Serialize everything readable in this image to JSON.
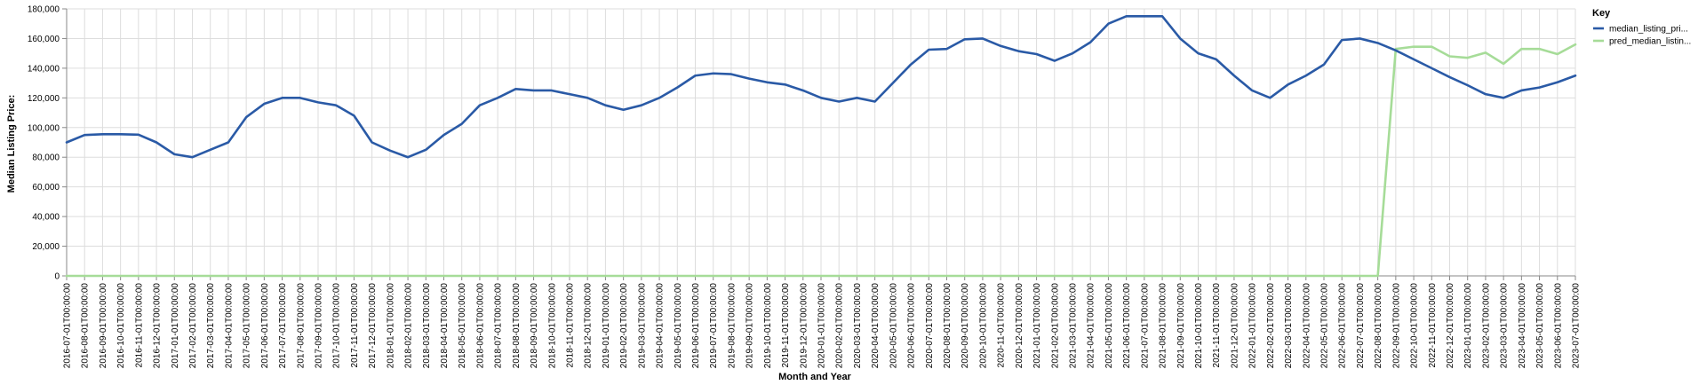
{
  "chart_data": {
    "type": "line",
    "xlabel": "Month and Year",
    "ylabel": "Median Listing Price:",
    "ylim": [
      0,
      180000
    ],
    "yticks": [
      "0",
      "20,000",
      "40,000",
      "60,000",
      "80,000",
      "100,000",
      "120,000",
      "140,000",
      "160,000",
      "180,000"
    ],
    "grid": true,
    "legend": {
      "title": "Key",
      "placement": "right"
    },
    "x": [
      "2016-07-01T00:00:00",
      "2016-08-01T00:00:00",
      "2016-09-01T00:00:00",
      "2016-10-01T00:00:00",
      "2016-11-01T00:00:00",
      "2016-12-01T00:00:00",
      "2017-01-01T00:00:00",
      "2017-02-01T00:00:00",
      "2017-03-01T00:00:00",
      "2017-04-01T00:00:00",
      "2017-05-01T00:00:00",
      "2017-06-01T00:00:00",
      "2017-07-01T00:00:00",
      "2017-08-01T00:00:00",
      "2017-09-01T00:00:00",
      "2017-10-01T00:00:00",
      "2017-11-01T00:00:00",
      "2017-12-01T00:00:00",
      "2018-01-01T00:00:00",
      "2018-02-01T00:00:00",
      "2018-03-01T00:00:00",
      "2018-04-01T00:00:00",
      "2018-05-01T00:00:00",
      "2018-06-01T00:00:00",
      "2018-07-01T00:00:00",
      "2018-08-01T00:00:00",
      "2018-09-01T00:00:00",
      "2018-10-01T00:00:00",
      "2018-11-01T00:00:00",
      "2018-12-01T00:00:00",
      "2019-01-01T00:00:00",
      "2019-02-01T00:00:00",
      "2019-03-01T00:00:00",
      "2019-04-01T00:00:00",
      "2019-05-01T00:00:00",
      "2019-06-01T00:00:00",
      "2019-07-01T00:00:00",
      "2019-08-01T00:00:00",
      "2019-09-01T00:00:00",
      "2019-10-01T00:00:00",
      "2019-11-01T00:00:00",
      "2019-12-01T00:00:00",
      "2020-01-01T00:00:00",
      "2020-02-01T00:00:00",
      "2020-03-01T00:00:00",
      "2020-04-01T00:00:00",
      "2020-05-01T00:00:00",
      "2020-06-01T00:00:00",
      "2020-07-01T00:00:00",
      "2020-08-01T00:00:00",
      "2020-09-01T00:00:00",
      "2020-10-01T00:00:00",
      "2020-11-01T00:00:00",
      "2020-12-01T00:00:00",
      "2021-01-01T00:00:00",
      "2021-02-01T00:00:00",
      "2021-03-01T00:00:00",
      "2021-04-01T00:00:00",
      "2021-05-01T00:00:00",
      "2021-06-01T00:00:00",
      "2021-07-01T00:00:00",
      "2021-08-01T00:00:00",
      "2021-09-01T00:00:00",
      "2021-10-01T00:00:00",
      "2021-11-01T00:00:00",
      "2021-12-01T00:00:00",
      "2022-01-01T00:00:00",
      "2022-02-01T00:00:00",
      "2022-03-01T00:00:00",
      "2022-04-01T00:00:00",
      "2022-05-01T00:00:00",
      "2022-06-01T00:00:00",
      "2022-07-01T00:00:00",
      "2022-08-01T00:00:00",
      "2022-09-01T00:00:00",
      "2022-10-01T00:00:00",
      "2022-11-01T00:00:00",
      "2022-12-01T00:00:00",
      "2023-01-01T00:00:00",
      "2023-02-01T00:00:00",
      "2023-03-01T00:00:00",
      "2023-04-01T00:00:00",
      "2023-05-01T00:00:00",
      "2023-06-01T00:00:00",
      "2023-07-01T00:00:00"
    ],
    "series": [
      {
        "name": "median_listing_pri...",
        "color": "#2a5aa6",
        "values": [
          90000,
          95000,
          95500,
          95500,
          95200,
          90000,
          82000,
          80000,
          85000,
          90000,
          107000,
          116000,
          120000,
          120000,
          117000,
          115000,
          108000,
          90000,
          84500,
          80000,
          85000,
          95000,
          102500,
          115000,
          120000,
          126000,
          125000,
          125000,
          122500,
          120000,
          115000,
          112000,
          115000,
          120000,
          127000,
          135000,
          136500,
          136000,
          133000,
          130500,
          129000,
          125000,
          120000,
          117500,
          120000,
          117500,
          130000,
          142500,
          152500,
          153000,
          159500,
          160000,
          155000,
          151500,
          149500,
          145000,
          150000,
          157500,
          170000,
          175000,
          175000,
          175000,
          160000,
          150000,
          146000,
          135000,
          125000,
          120000,
          129000,
          135000,
          142500,
          159000,
          160000,
          157000,
          152000,
          146000,
          140000,
          134000,
          128500,
          122500,
          120000,
          125000,
          127000,
          130500,
          135000
        ]
      },
      {
        "name": "pred_median_listin...",
        "color": "#a6dc98",
        "values": [
          0,
          0,
          0,
          0,
          0,
          0,
          0,
          0,
          0,
          0,
          0,
          0,
          0,
          0,
          0,
          0,
          0,
          0,
          0,
          0,
          0,
          0,
          0,
          0,
          0,
          0,
          0,
          0,
          0,
          0,
          0,
          0,
          0,
          0,
          0,
          0,
          0,
          0,
          0,
          0,
          0,
          0,
          0,
          0,
          0,
          0,
          0,
          0,
          0,
          0,
          0,
          0,
          0,
          0,
          0,
          0,
          0,
          0,
          0,
          0,
          0,
          0,
          0,
          0,
          0,
          0,
          0,
          0,
          0,
          0,
          0,
          0,
          0,
          0,
          153000,
          154500,
          154500,
          148000,
          147000,
          150500,
          143000,
          153000,
          153000,
          149500,
          156000
        ]
      }
    ]
  }
}
